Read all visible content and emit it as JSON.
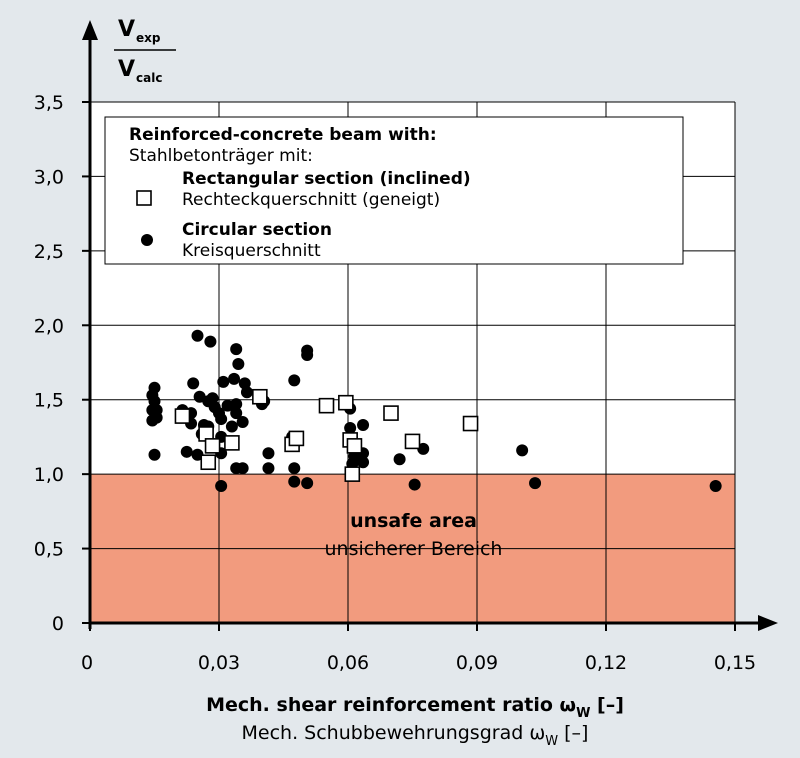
{
  "chart_data": {
    "type": "scatter",
    "title": "",
    "ylabel": {
      "top_main": "V",
      "top_sub": "exp",
      "bottom_main": "V",
      "bottom_sub": "calc"
    },
    "xlabel": {
      "en_prefix": "Mech. shear reinforcement ratio ",
      "en_symbol": "ω",
      "en_subscript": "W",
      "en_suffix": " [–]",
      "de_prefix": "Mech. Schubbewehrungsgrad ",
      "de_symbol": "ω",
      "de_subscript": "W",
      "de_suffix": " [–]"
    },
    "xlim": [
      0,
      0.15
    ],
    "ylim": [
      0,
      3.5
    ],
    "x_ticks": [
      {
        "value": 0,
        "label": "0"
      },
      {
        "value": 0.03,
        "label": "0,03"
      },
      {
        "value": 0.06,
        "label": "0,06"
      },
      {
        "value": 0.09,
        "label": "0,09"
      },
      {
        "value": 0.12,
        "label": "0,12"
      },
      {
        "value": 0.15,
        "label": "0,15"
      }
    ],
    "y_ticks": [
      {
        "value": 0,
        "label": "0"
      },
      {
        "value": 0.5,
        "label": "0,5"
      },
      {
        "value": 1.0,
        "label": "1,0"
      },
      {
        "value": 1.5,
        "label": "1,5"
      },
      {
        "value": 2.0,
        "label": "2,0"
      },
      {
        "value": 2.5,
        "label": "2,5"
      },
      {
        "value": 3.0,
        "label": "3,0"
      },
      {
        "value": 3.5,
        "label": "3,5"
      }
    ],
    "grid": true,
    "legend_position": "top",
    "legend": {
      "heading_en": "Reinforced-concrete beam with:",
      "heading_de": "Stahlbetonträger mit:"
    },
    "unsafe_region": {
      "y_range": [
        0,
        1.0
      ],
      "label_en": "unsafe area",
      "label_de": "unsicherer Bereich",
      "color": "#f29b7e"
    },
    "series": [
      {
        "name_en": "Rectangular section (inclined)",
        "name_de": "Rechteckquerschnitt (geneigt)",
        "marker": "open-square",
        "points": [
          [
            0.0215,
            1.39
          ],
          [
            0.027,
            1.27
          ],
          [
            0.0275,
            1.08
          ],
          [
            0.0285,
            1.19
          ],
          [
            0.033,
            1.21
          ],
          [
            0.0395,
            1.52
          ],
          [
            0.047,
            1.2
          ],
          [
            0.048,
            1.24
          ],
          [
            0.055,
            1.46
          ],
          [
            0.0595,
            1.48
          ],
          [
            0.0605,
            1.23
          ],
          [
            0.061,
            1.0
          ],
          [
            0.0615,
            1.19
          ],
          [
            0.07,
            1.41
          ],
          [
            0.075,
            1.22
          ],
          [
            0.0885,
            1.34
          ]
        ]
      },
      {
        "name_en": "Circular section",
        "name_de": "Kreisquerschnitt",
        "marker": "filled-circle",
        "points": [
          [
            0.0145,
            1.53
          ],
          [
            0.0145,
            1.43
          ],
          [
            0.0145,
            1.36
          ],
          [
            0.015,
            1.58
          ],
          [
            0.015,
            1.49
          ],
          [
            0.0155,
            1.43
          ],
          [
            0.0155,
            1.38
          ],
          [
            0.015,
            1.13
          ],
          [
            0.0215,
            1.43
          ],
          [
            0.0225,
            1.15
          ],
          [
            0.0235,
            1.34
          ],
          [
            0.0235,
            1.41
          ],
          [
            0.024,
            1.61
          ],
          [
            0.025,
            1.13
          ],
          [
            0.025,
            1.93
          ],
          [
            0.0255,
            1.52
          ],
          [
            0.026,
            1.27
          ],
          [
            0.0265,
            1.33
          ],
          [
            0.0275,
            1.49
          ],
          [
            0.0275,
            1.32
          ],
          [
            0.028,
            1.89
          ],
          [
            0.0285,
            1.51
          ],
          [
            0.029,
            1.45
          ],
          [
            0.03,
            1.41
          ],
          [
            0.0305,
            1.37
          ],
          [
            0.0305,
            1.14
          ],
          [
            0.0305,
            1.25
          ],
          [
            0.0305,
            0.92
          ],
          [
            0.031,
            1.62
          ],
          [
            0.032,
            1.46
          ],
          [
            0.033,
            1.32
          ],
          [
            0.0335,
            1.64
          ],
          [
            0.034,
            1.04
          ],
          [
            0.034,
            1.84
          ],
          [
            0.034,
            1.47
          ],
          [
            0.034,
            1.41
          ],
          [
            0.0345,
            1.74
          ],
          [
            0.0355,
            1.04
          ],
          [
            0.0355,
            1.35
          ],
          [
            0.036,
            1.61
          ],
          [
            0.0365,
            1.55
          ],
          [
            0.04,
            1.47
          ],
          [
            0.0405,
            1.49
          ],
          [
            0.0415,
            1.14
          ],
          [
            0.0415,
            1.04
          ],
          [
            0.047,
            1.25
          ],
          [
            0.0475,
            1.63
          ],
          [
            0.0475,
            1.04
          ],
          [
            0.0475,
            0.95
          ],
          [
            0.0505,
            1.83
          ],
          [
            0.0505,
            1.8
          ],
          [
            0.0505,
            0.94
          ],
          [
            0.0605,
            1.44
          ],
          [
            0.0605,
            1.31
          ],
          [
            0.061,
            1.07
          ],
          [
            0.0615,
            1.12
          ],
          [
            0.0635,
            1.33
          ],
          [
            0.0635,
            1.14
          ],
          [
            0.0635,
            1.08
          ],
          [
            0.072,
            1.1
          ],
          [
            0.0755,
            0.93
          ],
          [
            0.0775,
            1.17
          ],
          [
            0.1005,
            1.16
          ],
          [
            0.1035,
            0.94
          ],
          [
            0.1455,
            0.92
          ]
        ]
      }
    ]
  }
}
